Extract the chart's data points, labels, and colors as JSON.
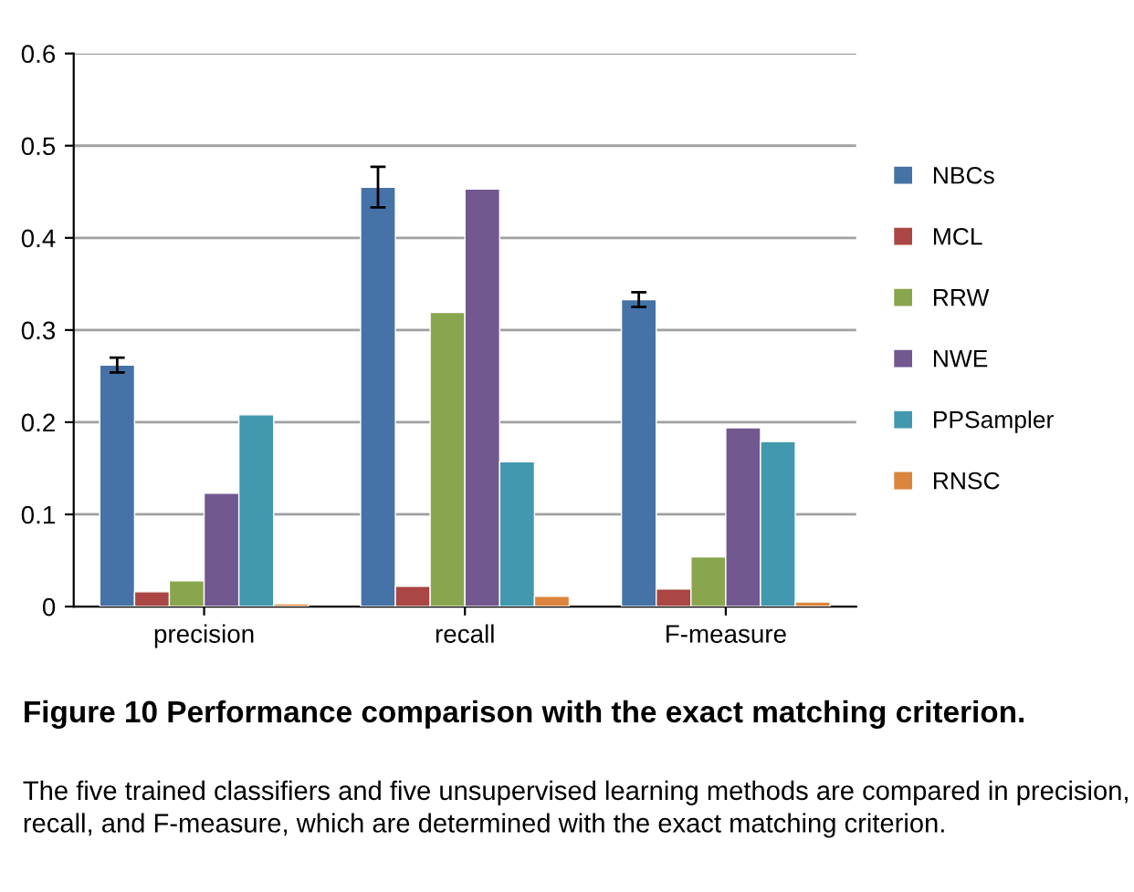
{
  "chart_data": {
    "type": "bar",
    "title": "Figure 10 Performance comparison with the exact matching criterion.",
    "annotations": [
      "The five trained classifiers and five unsupervised learning methods are compared in precision, recall, and F-measure, which are determined with the exact matching criterion."
    ],
    "categories": [
      "precision",
      "recall",
      "F-measure"
    ],
    "series": [
      {
        "name": "NBCs",
        "color": "#4572a7",
        "values": [
          0.262,
          0.455,
          0.333
        ],
        "errors": [
          0.008,
          0.022,
          0.008
        ]
      },
      {
        "name": "MCL",
        "color": "#aa4643",
        "values": [
          0.016,
          0.022,
          0.019
        ]
      },
      {
        "name": "RRW",
        "color": "#89a54e",
        "values": [
          0.028,
          0.319,
          0.054
        ]
      },
      {
        "name": "NWE",
        "color": "#71588f",
        "values": [
          0.123,
          0.453,
          0.194
        ]
      },
      {
        "name": "PPSampler",
        "color": "#4198af",
        "values": [
          0.208,
          0.157,
          0.179
        ]
      },
      {
        "name": "RNSC",
        "color": "#db843d",
        "values": [
          0.003,
          0.011,
          0.005
        ]
      }
    ],
    "ylim": [
      0,
      0.6
    ],
    "yticks": [
      0,
      0.1,
      0.2,
      0.3,
      0.4,
      0.5,
      0.6
    ],
    "grid": "y",
    "legend": "right"
  }
}
